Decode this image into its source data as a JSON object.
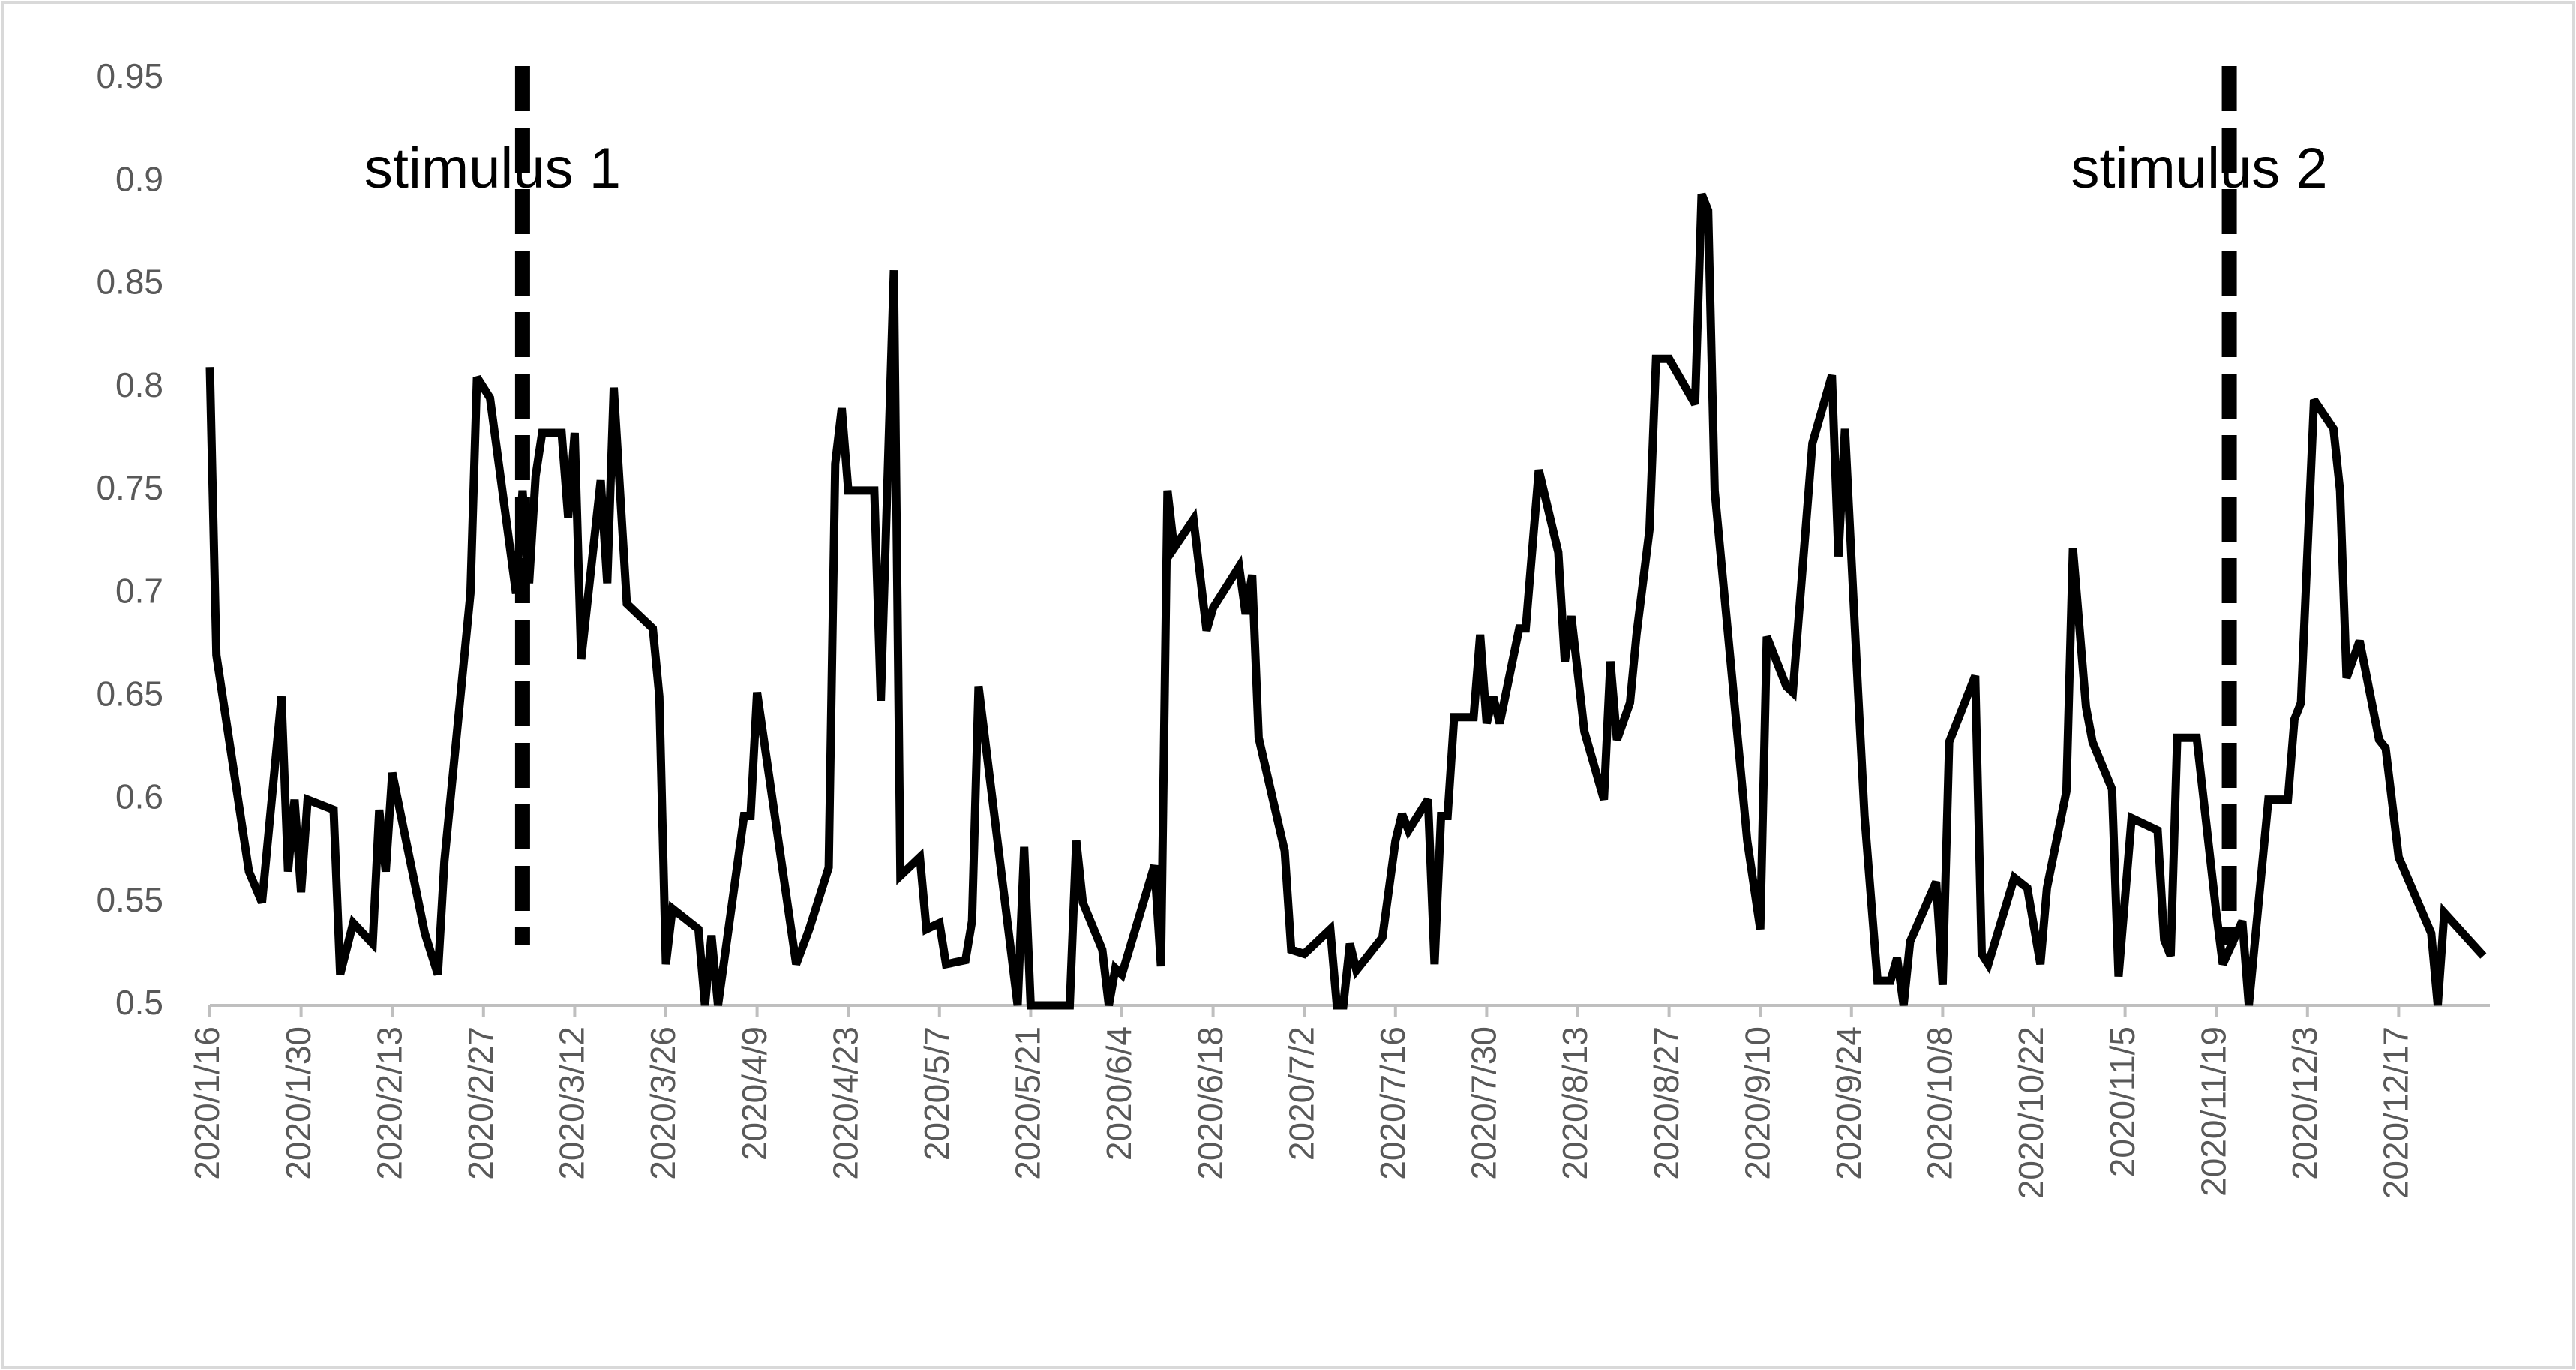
{
  "chart_data": {
    "type": "line",
    "x": [
      "2020/1/16",
      "2020/1/17",
      "2020/1/22",
      "2020/1/24",
      "2020/1/27",
      "2020/1/28",
      "2020/1/29",
      "2020/1/30",
      "2020/1/31",
      "2020/2/4",
      "2020/2/5",
      "2020/2/7",
      "2020/2/10",
      "2020/2/11",
      "2020/2/12",
      "2020/2/13",
      "2020/2/18",
      "2020/2/20",
      "2020/2/21",
      "2020/2/25",
      "2020/2/26",
      "2020/2/28",
      "2020/3/3",
      "2020/3/4",
      "2020/3/5",
      "2020/3/6",
      "2020/3/7",
      "2020/3/10",
      "2020/3/11",
      "2020/3/12",
      "2020/3/13",
      "2020/3/16",
      "2020/3/17",
      "2020/3/18",
      "2020/3/20",
      "2020/3/24",
      "2020/3/25",
      "2020/3/26",
      "2020/3/27",
      "2020/3/31",
      "2020/4/1",
      "2020/4/2",
      "2020/4/3",
      "2020/4/7",
      "2020/4/8",
      "2020/4/9",
      "2020/4/15",
      "2020/4/17",
      "2020/4/20",
      "2020/4/21",
      "2020/4/22",
      "2020/4/23",
      "2020/4/27",
      "2020/4/28",
      "2020/4/30",
      "2020/5/1",
      "2020/5/4",
      "2020/5/5",
      "2020/5/7",
      "2020/5/8",
      "2020/5/11",
      "2020/5/12",
      "2020/5/13",
      "2020/5/19",
      "2020/5/20",
      "2020/5/21",
      "2020/5/27",
      "2020/5/28",
      "2020/5/29",
      "2020/6/1",
      "2020/6/2",
      "2020/6/3",
      "2020/6/4",
      "2020/6/9",
      "2020/6/10",
      "2020/6/11",
      "2020/6/12",
      "2020/6/15",
      "2020/6/17",
      "2020/6/18",
      "2020/6/22",
      "2020/6/23",
      "2020/6/24",
      "2020/6/25",
      "2020/6/29",
      "2020/6/30",
      "2020/7/2",
      "2020/7/6",
      "2020/7/7",
      "2020/7/8",
      "2020/7/9",
      "2020/7/10",
      "2020/7/14",
      "2020/7/16",
      "2020/7/17",
      "2020/7/18",
      "2020/7/21",
      "2020/7/22",
      "2020/7/23",
      "2020/7/24",
      "2020/7/25",
      "2020/7/28",
      "2020/7/29",
      "2020/7/30",
      "2020/7/31",
      "2020/8/1",
      "2020/8/4",
      "2020/8/5",
      "2020/8/7",
      "2020/8/10",
      "2020/8/11",
      "2020/8/12",
      "2020/8/14",
      "2020/8/17",
      "2020/8/18",
      "2020/8/19",
      "2020/8/21",
      "2020/8/22",
      "2020/8/24",
      "2020/8/25",
      "2020/8/27",
      "2020/8/31",
      "2020/9/1",
      "2020/9/2",
      "2020/9/3",
      "2020/9/8",
      "2020/9/10",
      "2020/9/11",
      "2020/9/14",
      "2020/9/15",
      "2020/9/18",
      "2020/9/21",
      "2020/9/22",
      "2020/9/23",
      "2020/9/25",
      "2020/9/26",
      "2020/9/28",
      "2020/9/30",
      "2020/10/1",
      "2020/10/2",
      "2020/10/3",
      "2020/10/7",
      "2020/10/8",
      "2020/10/9",
      "2020/10/13",
      "2020/10/14",
      "2020/10/15",
      "2020/10/19",
      "2020/10/21",
      "2020/10/23",
      "2020/10/24",
      "2020/10/27",
      "2020/10/28",
      "2020/10/30",
      "2020/10/31",
      "2020/11/3",
      "2020/11/4",
      "2020/11/6",
      "2020/11/10",
      "2020/11/11",
      "2020/11/12",
      "2020/11/13",
      "2020/11/16",
      "2020/11/19",
      "2020/11/20",
      "2020/11/23",
      "2020/11/24",
      "2020/11/27",
      "2020/11/30",
      "2020/12/1",
      "2020/12/2",
      "2020/12/4",
      "2020/12/7",
      "2020/12/8",
      "2020/12/9",
      "2020/12/11",
      "2020/12/14",
      "2020/12/15",
      "2020/12/17",
      "2020/12/22",
      "2020/12/23",
      "2020/12/24",
      "2020/12/30"
    ],
    "series": [
      {
        "color": "#000000",
        "values": [
          0.81,
          0.67,
          0.565,
          0.55,
          0.65,
          0.565,
          0.6,
          0.555,
          0.6,
          0.595,
          0.515,
          0.54,
          0.53,
          0.595,
          0.565,
          0.613,
          0.535,
          0.515,
          0.57,
          0.7,
          0.805,
          0.795,
          0.7,
          0.75,
          0.705,
          0.757,
          0.778,
          0.778,
          0.737,
          0.778,
          0.668,
          0.755,
          0.705,
          0.8,
          0.695,
          0.683,
          0.65,
          0.52,
          0.547,
          0.537,
          0.5,
          0.534,
          0.5,
          0.592,
          0.592,
          0.652,
          0.52,
          0.537,
          0.567,
          0.763,
          0.79,
          0.75,
          0.75,
          0.648,
          0.857,
          0.563,
          0.572,
          0.537,
          0.54,
          0.52,
          0.522,
          0.541,
          0.655,
          0.5,
          0.577,
          0.5,
          0.5,
          0.58,
          0.55,
          0.527,
          0.5,
          0.518,
          0.515,
          0.568,
          0.519,
          0.75,
          0.722,
          0.736,
          0.682,
          0.693,
          0.713,
          0.69,
          0.709,
          0.63,
          0.575,
          0.527,
          0.525,
          0.537,
          0.5,
          0.5,
          0.53,
          0.517,
          0.533,
          0.58,
          0.593,
          0.585,
          0.6,
          0.52,
          0.592,
          0.592,
          0.64,
          0.64,
          0.68,
          0.637,
          0.65,
          0.637,
          0.683,
          0.683,
          0.76,
          0.72,
          0.667,
          0.689,
          0.633,
          0.6,
          0.667,
          0.629,
          0.647,
          0.68,
          0.731,
          0.814,
          0.814,
          0.792,
          0.894,
          0.886,
          0.75,
          0.58,
          0.537,
          0.679,
          0.655,
          0.652,
          0.773,
          0.806,
          0.718,
          0.78,
          0.653,
          0.592,
          0.512,
          0.512,
          0.523,
          0.5,
          0.531,
          0.56,
          0.51,
          0.628,
          0.66,
          0.525,
          0.52,
          0.562,
          0.557,
          0.52,
          0.557,
          0.604,
          0.722,
          0.645,
          0.628,
          0.605,
          0.514,
          0.591,
          0.585,
          0.532,
          0.524,
          0.63,
          0.63,
          0.545,
          0.52,
          0.541,
          0.5,
          0.6,
          0.6,
          0.639,
          0.647,
          0.794,
          0.78,
          0.75,
          0.659,
          0.677,
          0.629,
          0.625,
          0.572,
          0.535,
          0.5,
          0.545,
          0.524
        ]
      }
    ],
    "xlim": [
      "2020/1/16",
      "2020/12/31"
    ],
    "xticks": [
      "2020/1/16",
      "2020/1/30",
      "2020/2/13",
      "2020/2/27",
      "2020/3/12",
      "2020/3/26",
      "2020/4/9",
      "2020/4/23",
      "2020/5/7",
      "2020/5/21",
      "2020/6/4",
      "2020/6/18",
      "2020/7/2",
      "2020/7/16",
      "2020/7/30",
      "2020/8/13",
      "2020/8/27",
      "2020/9/10",
      "2020/9/24",
      "2020/10/8",
      "2020/10/22",
      "2020/11/5",
      "2020/11/19",
      "2020/12/3",
      "2020/12/17"
    ],
    "ylim": [
      0.5,
      0.95
    ],
    "yticks": [
      0.5,
      0.55,
      0.6,
      0.65,
      0.7,
      0.75,
      0.8,
      0.85,
      0.9,
      0.95
    ],
    "grid": false,
    "annotations": [
      {
        "text": "stimulus 1",
        "x": "2020/3/4"
      },
      {
        "text": "stimulus 2",
        "x": "2020/11/21"
      }
    ]
  }
}
